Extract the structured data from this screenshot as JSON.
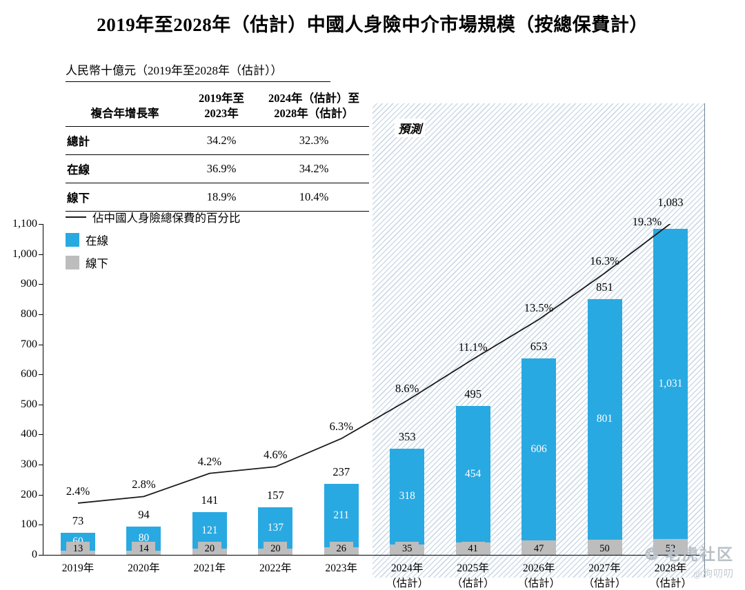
{
  "title": "2019年至2028年（估計）中國人身險中介市場規模（按總保費計）",
  "unit_note": "人民幣十億元（2019年至2028年（估計））",
  "forecast_label": "預測",
  "cagr_table": {
    "col1_header": "複合年增長率",
    "col2_header": [
      "2019年至",
      "2023年"
    ],
    "col3_header": [
      "2024年（估計）至",
      "2028年（估計）"
    ],
    "rows": [
      {
        "label": "總計",
        "cagr_2019_2023": "34.2%",
        "cagr_2024_2028": "32.3%"
      },
      {
        "label": "在線",
        "cagr_2019_2023": "36.9%",
        "cagr_2024_2028": "34.2%"
      },
      {
        "label": "線下",
        "cagr_2019_2023": "18.9%",
        "cagr_2024_2028": "10.4%"
      }
    ]
  },
  "legend": {
    "line_label": "佔中國人身險總保費的百分比",
    "online_label": "在線",
    "offline_label": "線下"
  },
  "colors": {
    "online": "#29A9E1",
    "offline": "#BDBDBD",
    "line": "#1a1a1a",
    "hatch": "#ccdae6"
  },
  "watermark": {
    "logo_glyph": "❂",
    "brand": "老虎社区",
    "handle": "@狗叨叨"
  },
  "chart_data": {
    "type": "bar",
    "stacked": true,
    "overlay": "line",
    "grid": false,
    "legend_position": "top-left",
    "title": "2019年至2028年（估計）中國人身險中介市場規模（按總保費計）",
    "unit": "人民幣十億元",
    "categories": [
      "2019年",
      "2020年",
      "2021年",
      "2022年",
      "2023年",
      "2024年（估計）",
      "2025年（估計）",
      "2026年（估計）",
      "2027年（估計）",
      "2028年（估計）"
    ],
    "x_labels": [
      [
        "2019年"
      ],
      [
        "2020年"
      ],
      [
        "2021年"
      ],
      [
        "2022年"
      ],
      [
        "2023年"
      ],
      [
        "2024年",
        "（估計）"
      ],
      [
        "2025年",
        "（估計）"
      ],
      [
        "2026年",
        "（估計）"
      ],
      [
        "2027年",
        "（估計）"
      ],
      [
        "2028年",
        "（估計）"
      ]
    ],
    "series": [
      {
        "name": "線下",
        "color": "#BDBDBD",
        "values": [
          13,
          14,
          20,
          20,
          26,
          35,
          41,
          47,
          50,
          52
        ],
        "labels": [
          "13",
          "14",
          "20",
          "20",
          "26",
          "35",
          "41",
          "47",
          "50",
          "52"
        ]
      },
      {
        "name": "在線",
        "color": "#29A9E1",
        "values": [
          60,
          80,
          121,
          137,
          211,
          318,
          454,
          606,
          801,
          1031
        ],
        "labels": [
          "60",
          "80",
          "121",
          "137",
          "211",
          "318",
          "454",
          "606",
          "801",
          "1,031"
        ]
      }
    ],
    "totals": [
      73,
      94,
      141,
      157,
      237,
      353,
      495,
      653,
      851,
      1083
    ],
    "total_labels": [
      "73",
      "94",
      "141",
      "157",
      "237",
      "353",
      "495",
      "653",
      "851",
      "1,083"
    ],
    "line_series": {
      "name": "佔中國人身險總保費的百分比",
      "values_pct": [
        2.4,
        2.8,
        4.2,
        4.6,
        6.3,
        8.6,
        11.1,
        13.5,
        16.3,
        19.3
      ],
      "labels": [
        "2.4%",
        "2.8%",
        "4.2%",
        "4.6%",
        "6.3%",
        "8.6%",
        "11.1%",
        "13.5%",
        "16.3%",
        "19.3%"
      ]
    },
    "ylim": [
      0,
      1100
    ],
    "ytick_step": 100,
    "yticks": [
      "0",
      "100",
      "200",
      "300",
      "400",
      "500",
      "600",
      "700",
      "800",
      "900",
      "1,000",
      "1,100"
    ],
    "forecast_start_index": 5
  }
}
